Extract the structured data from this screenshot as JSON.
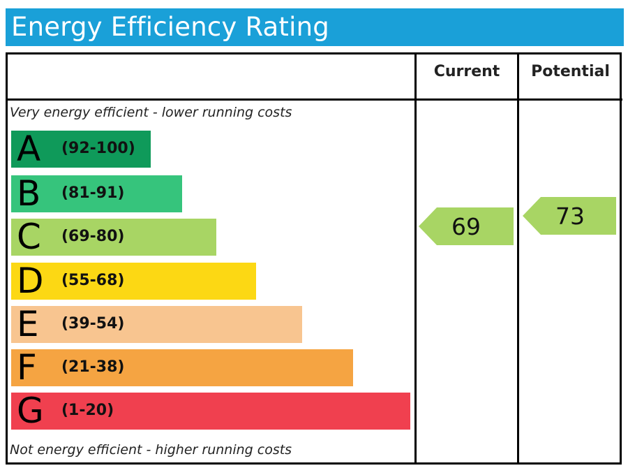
{
  "title": "Energy Efficiency Rating",
  "headers": {
    "current": "Current",
    "potential": "Potential"
  },
  "notes": {
    "top": "Very energy efficient - lower running costs",
    "bottom": "Not energy efficient - higher running costs"
  },
  "chart_data": {
    "type": "bar",
    "title": "Energy Efficiency Rating",
    "categories": [
      "A",
      "B",
      "C",
      "D",
      "E",
      "F",
      "G"
    ],
    "bands": [
      {
        "letter": "A",
        "range": "(92-100)",
        "min": 92,
        "max": 100,
        "color": "#0f9a5a"
      },
      {
        "letter": "B",
        "range": "(81-91)",
        "min": 81,
        "max": 91,
        "color": "#36c47c"
      },
      {
        "letter": "C",
        "range": "(69-80)",
        "min": 69,
        "max": 80,
        "color": "#a8d564"
      },
      {
        "letter": "D",
        "range": "(55-68)",
        "min": 55,
        "max": 68,
        "color": "#fcd814"
      },
      {
        "letter": "E",
        "range": "(39-54)",
        "min": 39,
        "max": 54,
        "color": "#f8c590"
      },
      {
        "letter": "F",
        "range": "(21-38)",
        "min": 21,
        "max": 38,
        "color": "#f5a442"
      },
      {
        "letter": "G",
        "range": "(1-20)",
        "min": 1,
        "max": 20,
        "color": "#f0404f"
      }
    ],
    "current": {
      "label": "Current",
      "value": 69,
      "band": "C",
      "color": "#a8d564"
    },
    "potential": {
      "label": "Potential",
      "value": 73,
      "band": "C",
      "color": "#a8d564"
    }
  }
}
